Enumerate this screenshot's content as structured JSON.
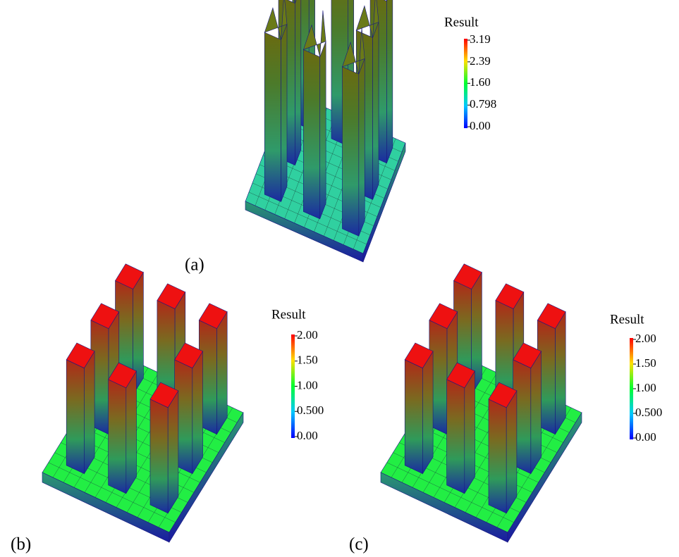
{
  "panels": [
    {
      "label": "(a)",
      "colorbar": {
        "title": "Result",
        "ticks": [
          {
            "value": 0,
            "label": "0.00"
          },
          0.798,
          {
            "value": 1.6,
            "label": "1.60"
          },
          2.39,
          3.19
        ]
      }
    },
    {
      "label": "(b)",
      "colorbar": {
        "title": "Result",
        "ticks": [
          {
            "value": 0,
            "label": "0.00"
          },
          {
            "value": 0.5,
            "label": "0.500"
          },
          {
            "value": 1,
            "label": "1.00"
          },
          {
            "value": 1.5,
            "label": "1.50"
          },
          {
            "value": 2,
            "label": "2.00"
          }
        ]
      }
    },
    {
      "label": "(c)",
      "colorbar": {
        "title": "Result",
        "ticks": [
          {
            "value": 0,
            "label": "0.00"
          },
          {
            "value": 0.5,
            "label": "0.500"
          },
          {
            "value": 1,
            "label": "1.00"
          },
          {
            "value": 1.5,
            "label": "1.50"
          },
          {
            "value": 2,
            "label": "2.00"
          }
        ]
      }
    }
  ]
}
